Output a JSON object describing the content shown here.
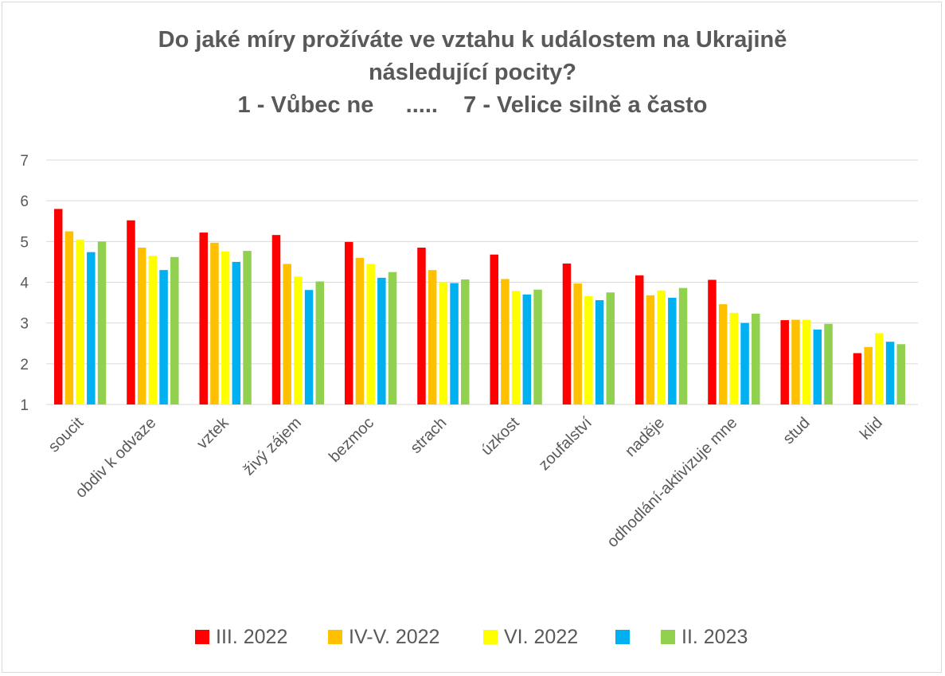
{
  "chart_data": {
    "type": "bar",
    "title_lines": [
      "Do jaké míry prožíváte ve vztahu k událostem na Ukrajině",
      "následující pocity?",
      "1 - Vůbec ne     .....    7 - Velice silně a často"
    ],
    "categories": [
      "soucit",
      "obdiv k odvaze",
      "vztek",
      "živý zájem",
      "bezmoc",
      "strach",
      "úzkost",
      "zoufalství",
      "naděje",
      "odhodlání-aktivizuje mne",
      "stud",
      "klid"
    ],
    "series": [
      {
        "name": "III. 2022",
        "color": "#ff0000",
        "values": [
          5.8,
          5.52,
          5.22,
          5.16,
          4.99,
          4.85,
          4.68,
          4.46,
          4.17,
          4.06,
          3.07,
          2.26
        ]
      },
      {
        "name": "IV-V. 2022",
        "color": "#ffc000",
        "values": [
          5.25,
          4.85,
          4.97,
          4.45,
          4.6,
          4.3,
          4.08,
          3.97,
          3.68,
          3.46,
          3.08,
          2.41
        ]
      },
      {
        "name": "VI. 2022",
        "color": "#ffff00",
        "values": [
          5.05,
          4.65,
          4.76,
          4.14,
          4.45,
          4.0,
          3.79,
          3.66,
          3.8,
          3.25,
          3.08,
          2.75
        ]
      },
      {
        "name": "",
        "color": "#00b0f0",
        "values": [
          4.74,
          4.3,
          4.5,
          3.81,
          4.11,
          3.98,
          3.7,
          3.56,
          3.62,
          3.0,
          2.84,
          2.54
        ]
      },
      {
        "name": "II. 2023",
        "color": "#92d050",
        "values": [
          5.0,
          4.62,
          4.77,
          4.02,
          4.25,
          4.07,
          3.82,
          3.75,
          3.86,
          3.23,
          2.98,
          2.48
        ]
      }
    ],
    "yticks": [
      "1",
      "2",
      "3",
      "4",
      "5",
      "6",
      "7"
    ],
    "ylim": [
      1,
      7
    ],
    "grid": true,
    "legend_position": "bottom"
  }
}
